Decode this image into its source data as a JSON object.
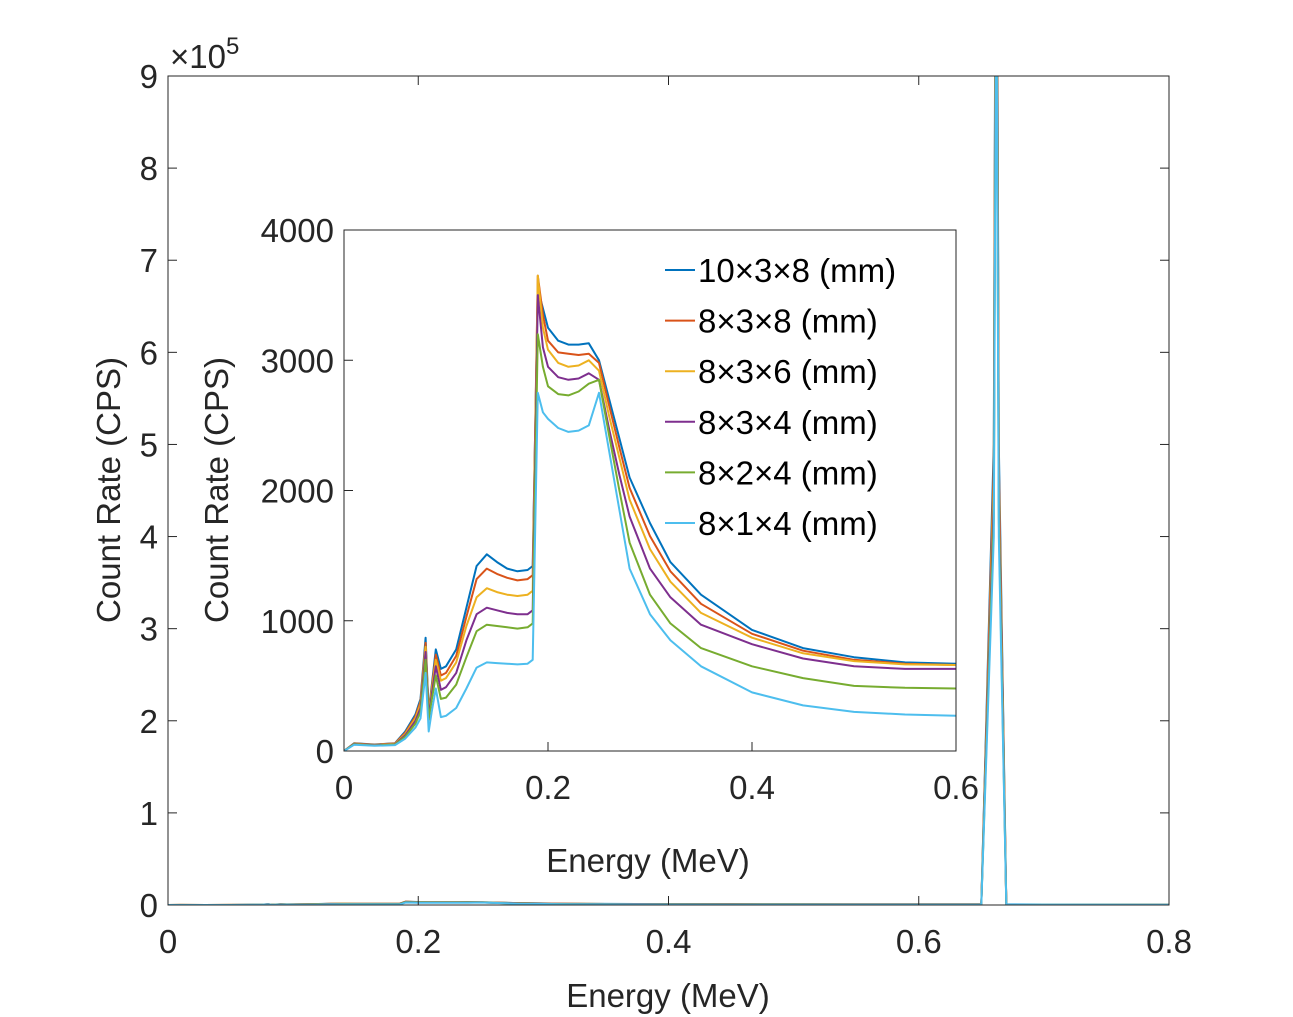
{
  "chart_data": [
    {
      "type": "line",
      "role": "main",
      "xlabel": "Energy (MeV)",
      "ylabel": "Count Rate (CPS)",
      "y_exponent_label": "×10",
      "y_exponent_power": "5",
      "xlim": [
        0,
        0.8
      ],
      "ylim": [
        0,
        900000
      ],
      "xticks": [
        "0",
        "0.2",
        "0.4",
        "0.6",
        "0.8"
      ],
      "yticks": [
        "0",
        "1",
        "2",
        "3",
        "4",
        "5",
        "6",
        "7",
        "8",
        "9"
      ],
      "grid": false
    },
    {
      "type": "line",
      "role": "inset",
      "xlabel": "Energy (MeV)",
      "ylabel": "Count Rate (CPS)",
      "xlim": [
        0,
        0.6
      ],
      "ylim": [
        0,
        4000
      ],
      "xticks": [
        "0",
        "0.2",
        "0.4",
        "0.6"
      ],
      "yticks": [
        "0",
        "1000",
        "2000",
        "3000",
        "4000"
      ],
      "legend_position": "top-right",
      "grid": false
    }
  ],
  "x": [
    0,
    0.01,
    0.03,
    0.05,
    0.06,
    0.07,
    0.075,
    0.08,
    0.083,
    0.086,
    0.09,
    0.095,
    0.1,
    0.11,
    0.12,
    0.13,
    0.14,
    0.15,
    0.16,
    0.17,
    0.18,
    0.185,
    0.19,
    0.195,
    0.2,
    0.21,
    0.22,
    0.23,
    0.24,
    0.25,
    0.26,
    0.27,
    0.28,
    0.3,
    0.32,
    0.35,
    0.4,
    0.45,
    0.5,
    0.55,
    0.6,
    0.65,
    0.66,
    0.662,
    0.664,
    0.67,
    0.7,
    0.8
  ],
  "series": [
    {
      "name": "10×3×8 (mm)",
      "color": "#0072BD",
      "values": [
        0,
        60,
        50,
        60,
        150,
        280,
        400,
        870,
        300,
        500,
        780,
        630,
        650,
        780,
        1100,
        1420,
        1510,
        1450,
        1400,
        1380,
        1390,
        1420,
        3550,
        3400,
        3250,
        3150,
        3120,
        3120,
        3130,
        3000,
        2700,
        2400,
        2100,
        1750,
        1450,
        1200,
        930,
        790,
        720,
        680,
        670,
        680,
        500000,
        1300000,
        500000,
        600,
        500,
        300
      ]
    },
    {
      "name": "8×3×8 (mm)",
      "color": "#D95319",
      "values": [
        0,
        58,
        48,
        58,
        140,
        265,
        380,
        830,
        290,
        480,
        740,
        580,
        600,
        730,
        1030,
        1320,
        1400,
        1360,
        1330,
        1310,
        1320,
        1350,
        3650,
        3350,
        3150,
        3060,
        3050,
        3040,
        3050,
        2980,
        2650,
        2330,
        2020,
        1650,
        1380,
        1130,
        900,
        770,
        700,
        670,
        660,
        670,
        480000,
        1250000,
        480000,
        590,
        490,
        290
      ]
    },
    {
      "name": "8×3×6 (mm)",
      "color": "#EDB120",
      "values": [
        0,
        56,
        46,
        55,
        130,
        250,
        360,
        800,
        280,
        460,
        700,
        540,
        560,
        680,
        960,
        1180,
        1250,
        1220,
        1200,
        1190,
        1200,
        1230,
        3650,
        3250,
        3080,
        2980,
        2950,
        2960,
        3000,
        2920,
        2570,
        2250,
        1930,
        1550,
        1300,
        1060,
        870,
        750,
        690,
        665,
        660,
        665,
        460000,
        1200000,
        460000,
        580,
        480,
        280
      ]
    },
    {
      "name": "8×3×4 (mm)",
      "color": "#7E2F8E",
      "values": [
        0,
        54,
        44,
        52,
        120,
        230,
        330,
        760,
        260,
        430,
        650,
        470,
        490,
        600,
        850,
        1050,
        1100,
        1080,
        1060,
        1050,
        1050,
        1080,
        3500,
        3100,
        2950,
        2870,
        2850,
        2860,
        2900,
        2850,
        2470,
        2120,
        1800,
        1400,
        1180,
        970,
        820,
        710,
        650,
        630,
        630,
        640,
        440000,
        1150000,
        440000,
        560,
        460,
        270
      ]
    },
    {
      "name": "8×2×4 (mm)",
      "color": "#77AC30",
      "values": [
        0,
        52,
        42,
        50,
        110,
        210,
        300,
        700,
        240,
        390,
        580,
        400,
        410,
        510,
        720,
        920,
        970,
        960,
        950,
        940,
        950,
        980,
        3200,
        2950,
        2800,
        2740,
        2730,
        2760,
        2820,
        2850,
        2420,
        2000,
        1600,
        1200,
        980,
        790,
        650,
        560,
        500,
        485,
        480,
        490,
        420000,
        1100000,
        420000,
        540,
        440,
        260
      ]
    },
    {
      "name": "8×1×4 (mm)",
      "color": "#4DBEEE",
      "values": [
        0,
        48,
        40,
        45,
        95,
        180,
        250,
        600,
        150,
        300,
        480,
        260,
        270,
        330,
        480,
        640,
        680,
        675,
        670,
        665,
        670,
        700,
        2750,
        2600,
        2550,
        2480,
        2450,
        2460,
        2500,
        2750,
        2300,
        1850,
        1400,
        1050,
        850,
        650,
        450,
        350,
        300,
        280,
        270,
        280,
        400000,
        1050000,
        400000,
        500,
        420,
        250
      ]
    }
  ]
}
